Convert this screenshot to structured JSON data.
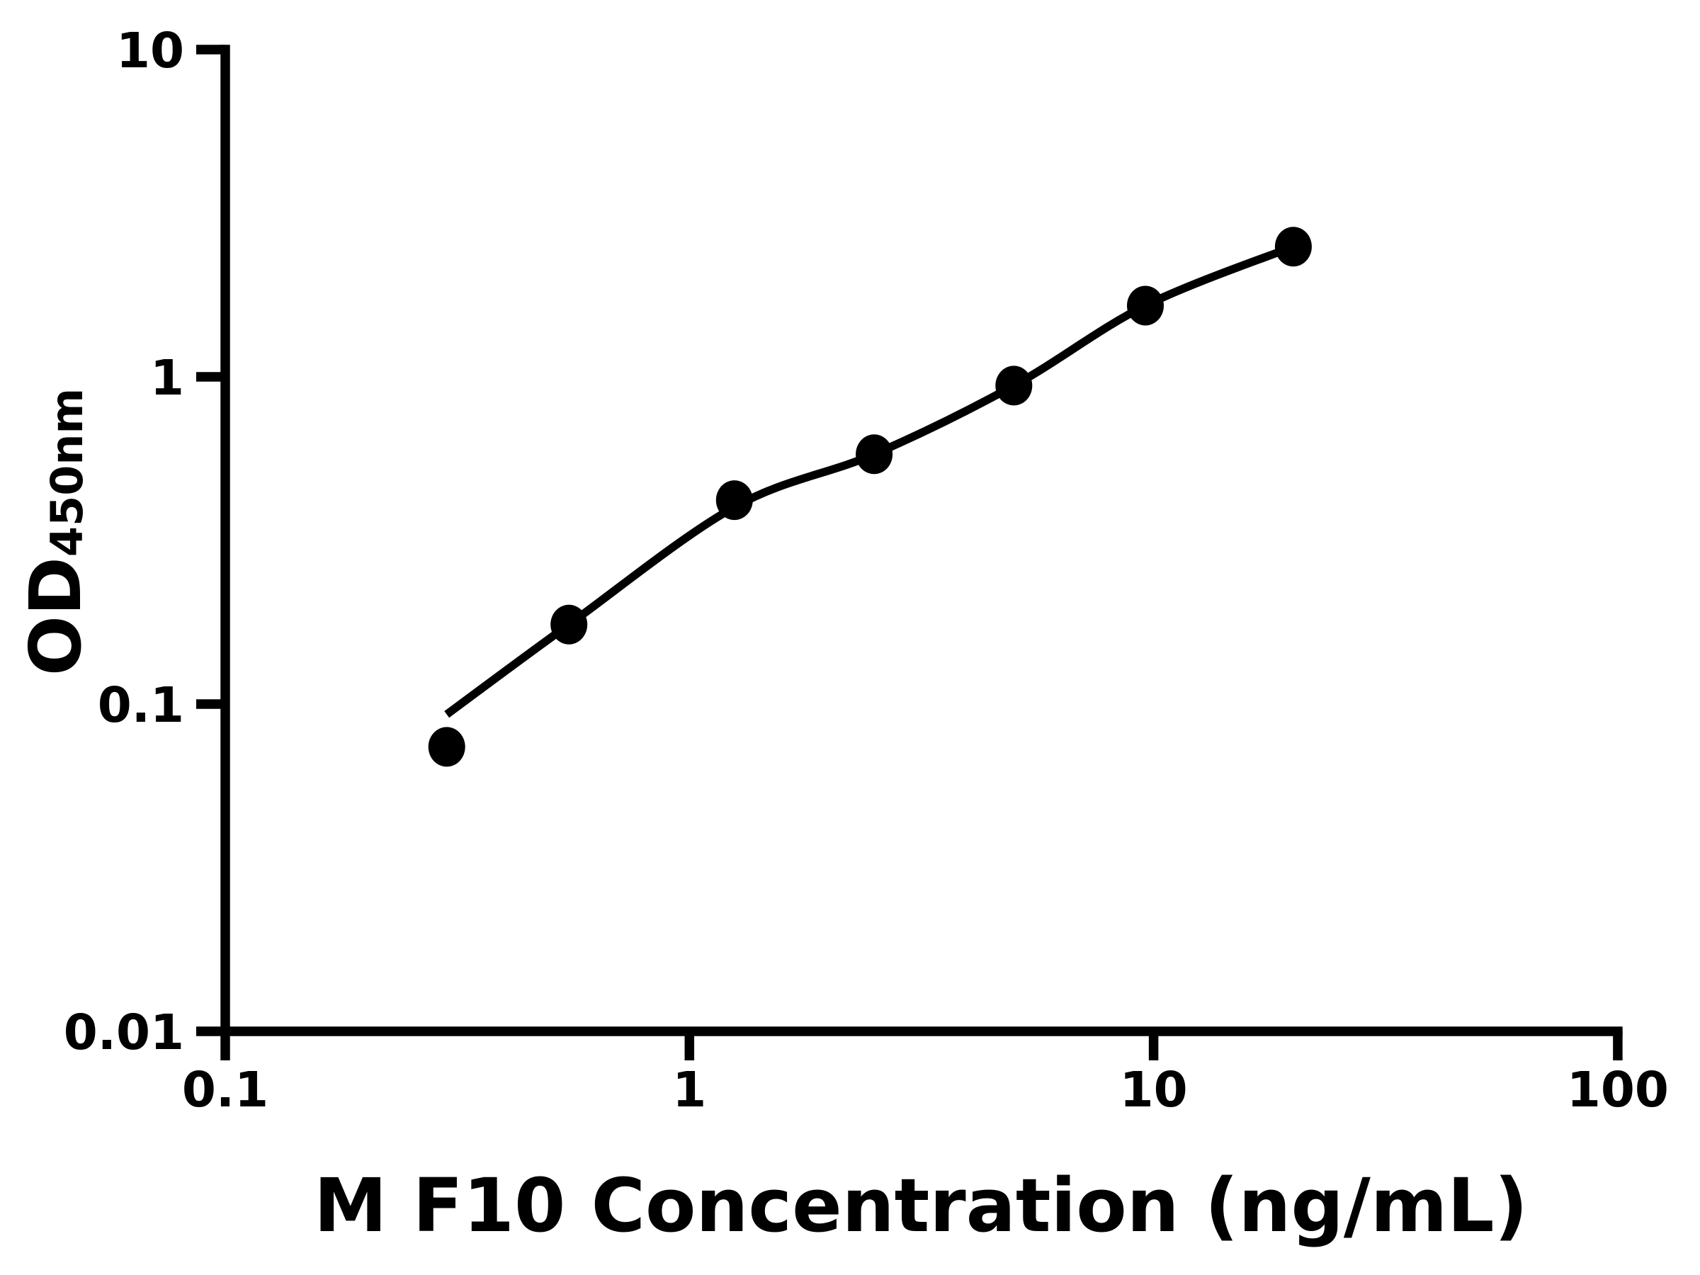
{
  "figure": {
    "background": "#ffffff",
    "ink": "#000000"
  },
  "chart_data": {
    "type": "scatter",
    "title": "",
    "xlabel": "M F10 Concentration (ng/mL)",
    "ylabel_main": "OD",
    "ylabel_sub": "450nm",
    "x_scale": "log",
    "y_scale": "log",
    "xlim": [
      0.1,
      100
    ],
    "ylim": [
      0.01,
      10
    ],
    "grid": false,
    "legend": false,
    "x_ticks": [
      {
        "value": 0.1,
        "label": "0.1"
      },
      {
        "value": 1,
        "label": "1"
      },
      {
        "value": 10,
        "label": "10"
      },
      {
        "value": 100,
        "label": "100"
      }
    ],
    "y_ticks": [
      {
        "value": 0.01,
        "label": "0.01"
      },
      {
        "value": 0.1,
        "label": "0.1"
      },
      {
        "value": 1,
        "label": "1"
      },
      {
        "value": 10,
        "label": "10"
      }
    ],
    "series": [
      {
        "name": "standard points",
        "type": "scatter",
        "marker": "filled-circle",
        "color": "#000000",
        "points": [
          {
            "x": 0.3,
            "y": 0.074
          },
          {
            "x": 0.55,
            "y": 0.175
          },
          {
            "x": 1.25,
            "y": 0.42
          },
          {
            "x": 2.5,
            "y": 0.58
          },
          {
            "x": 5,
            "y": 0.94
          },
          {
            "x": 9.6,
            "y": 1.65
          },
          {
            "x": 20,
            "y": 2.5
          }
        ]
      },
      {
        "name": "fitted curve",
        "type": "line",
        "color": "#000000",
        "points": [
          {
            "x": 0.3,
            "y": 0.093
          },
          {
            "x": 0.55,
            "y": 0.175
          },
          {
            "x": 1.25,
            "y": 0.4
          },
          {
            "x": 2.5,
            "y": 0.58
          },
          {
            "x": 5,
            "y": 0.94
          },
          {
            "x": 9.6,
            "y": 1.65
          },
          {
            "x": 20,
            "y": 2.5
          }
        ]
      }
    ]
  }
}
